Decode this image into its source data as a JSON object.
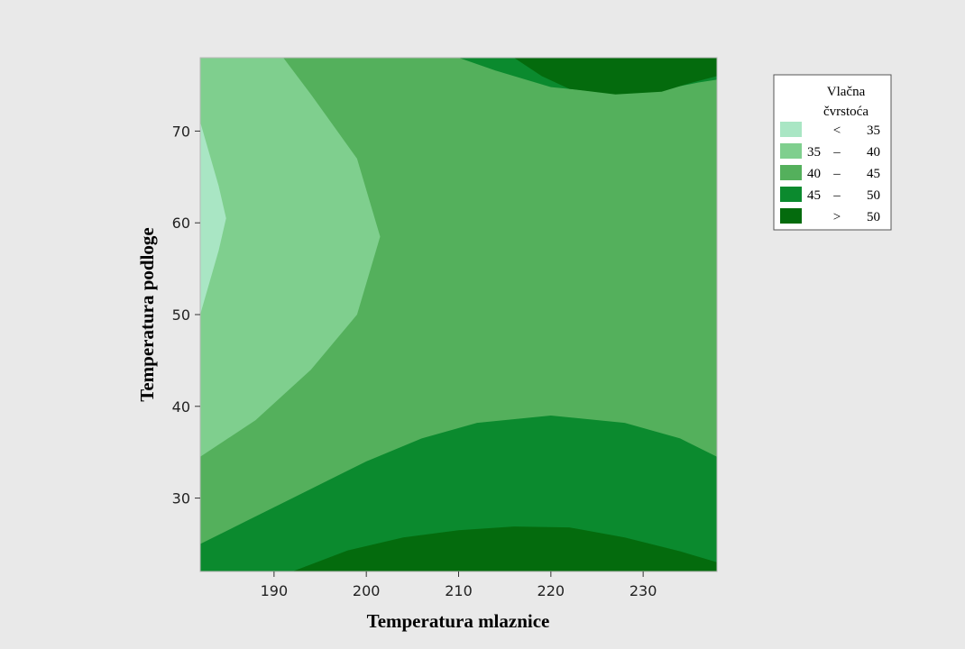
{
  "chart_data": {
    "type": "contour",
    "xlabel": "Temperatura mlaznice",
    "ylabel": "Temperatura podloge",
    "xlim": [
      182,
      238
    ],
    "ylim": [
      22,
      78
    ],
    "x_ticks": [
      190,
      200,
      210,
      220,
      230
    ],
    "y_ticks": [
      30,
      40,
      50,
      60,
      70
    ],
    "legend": {
      "title_line1": "Vlačna",
      "title_line2": "čvrstoća",
      "placement": "right",
      "entries": [
        {
          "op": "<",
          "lo": "",
          "sep": "",
          "hi": "35",
          "color": "#a9e6c4"
        },
        {
          "op": "",
          "lo": "35",
          "sep": "–",
          "hi": "40",
          "color": "#7fcf8e"
        },
        {
          "op": "",
          "lo": "40",
          "sep": "–",
          "hi": "45",
          "color": "#54b05c"
        },
        {
          "op": "",
          "lo": "45",
          "sep": "–",
          "hi": "50",
          "color": "#0b8a2e"
        },
        {
          "op": ">",
          "lo": "",
          "sep": "",
          "hi": "50",
          "color": "#046b0d"
        }
      ]
    },
    "regions": [
      {
        "level": "40 – 45",
        "color": "#54b05c",
        "points": [
          [
            182,
            22
          ],
          [
            238,
            22
          ],
          [
            238,
            78
          ],
          [
            182,
            78
          ]
        ]
      },
      {
        "level": "35 – 40",
        "color": "#7fcf8e",
        "points": [
          [
            182,
            34.5
          ],
          [
            188,
            38.5
          ],
          [
            194,
            44
          ],
          [
            199,
            50
          ],
          [
            201.5,
            58.5
          ],
          [
            199,
            67
          ],
          [
            194,
            74
          ],
          [
            191,
            78
          ],
          [
            182,
            78
          ]
        ]
      },
      {
        "level": "< 35",
        "color": "#a9e6c4",
        "points": [
          [
            182,
            50
          ],
          [
            184,
            57
          ],
          [
            184.8,
            60.5
          ],
          [
            184,
            64
          ],
          [
            182,
            71
          ]
        ]
      },
      {
        "level": "45 – 50",
        "color": "#0b8a2e",
        "points": [
          [
            182,
            22
          ],
          [
            238,
            22
          ],
          [
            238,
            34.5
          ],
          [
            234,
            36.5
          ],
          [
            228,
            38.2
          ],
          [
            220,
            39
          ],
          [
            212,
            38.2
          ],
          [
            206,
            36.5
          ],
          [
            200,
            34
          ],
          [
            192,
            30
          ],
          [
            187,
            27.5
          ],
          [
            182,
            25
          ]
        ]
      },
      {
        "level": "> 50",
        "color": "#046b0d",
        "points": [
          [
            192,
            22
          ],
          [
            198,
            24.3
          ],
          [
            204,
            25.7
          ],
          [
            210,
            26.5
          ],
          [
            216,
            26.9
          ],
          [
            222,
            26.8
          ],
          [
            228,
            25.7
          ],
          [
            234,
            24.2
          ],
          [
            238,
            23
          ],
          [
            238,
            22
          ]
        ]
      },
      {
        "level": "45 – 50",
        "color": "#0b8a2e",
        "points": [
          [
            210,
            78
          ],
          [
            214,
            76.6
          ],
          [
            220,
            74.8
          ],
          [
            226,
            74.2
          ],
          [
            232,
            74.5
          ],
          [
            236,
            75.3
          ],
          [
            238,
            75.6
          ],
          [
            238,
            78
          ]
        ]
      },
      {
        "level": "> 50",
        "color": "#046b0d",
        "points": [
          [
            216,
            78
          ],
          [
            219,
            76
          ],
          [
            222,
            74.6
          ],
          [
            227,
            74
          ],
          [
            232,
            74.3
          ],
          [
            235,
            75.2
          ],
          [
            238,
            76
          ],
          [
            238,
            78
          ]
        ]
      }
    ]
  }
}
